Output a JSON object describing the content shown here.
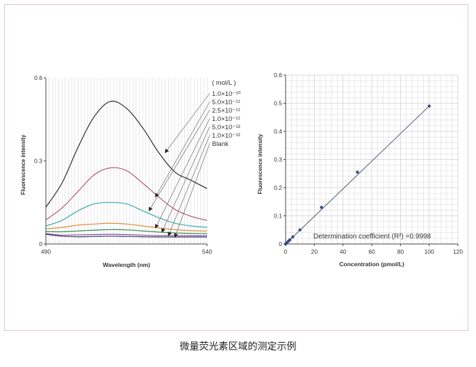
{
  "caption": "微量荧光素区域的测定示例",
  "colors": {
    "frame_border": "#e9c2cb",
    "grid": "#cfcfcf",
    "axis": "#444444",
    "fit_line": "#555577",
    "points": "#3a4a8a",
    "curves": [
      "#2b2b2b",
      "#b05a7a",
      "#3aa8a8",
      "#e08a40",
      "#2e8a4e",
      "#8a4aa0",
      "#3a3a6a"
    ]
  },
  "chart_data": [
    {
      "type": "line",
      "title": "",
      "xlabel": "Wavelength (nm)",
      "ylabel": "Fluorescence intensity",
      "xlim": [
        490,
        540
      ],
      "ylim": [
        0,
        0.6
      ],
      "x_ticks": [
        "490",
        "540"
      ],
      "y_ticks": [
        "0",
        "0.3",
        "0.6"
      ],
      "grid": "vertical",
      "legend_title": "( mol/L )",
      "legend_position": "right",
      "x": [
        490,
        495,
        500,
        505,
        510,
        515,
        520,
        525,
        530,
        535,
        540
      ],
      "series": [
        {
          "name": "1.0×10⁻¹⁰",
          "values": [
            0.133,
            0.22,
            0.35,
            0.46,
            0.515,
            0.49,
            0.42,
            0.33,
            0.26,
            0.23,
            0.2
          ]
        },
        {
          "name": "5.0×10⁻¹¹",
          "values": [
            0.087,
            0.13,
            0.19,
            0.25,
            0.275,
            0.265,
            0.22,
            0.17,
            0.125,
            0.1,
            0.085
          ]
        },
        {
          "name": "2.5×10⁻¹¹",
          "values": [
            0.065,
            0.085,
            0.12,
            0.145,
            0.15,
            0.145,
            0.12,
            0.095,
            0.075,
            0.065,
            0.06
          ]
        },
        {
          "name": "1.0×10⁻¹¹",
          "values": [
            0.055,
            0.06,
            0.068,
            0.072,
            0.075,
            0.072,
            0.065,
            0.058,
            0.052,
            0.048,
            0.047
          ]
        },
        {
          "name": "5.0×10⁻¹²",
          "values": [
            0.045,
            0.044,
            0.047,
            0.05,
            0.052,
            0.051,
            0.047,
            0.043,
            0.04,
            0.038,
            0.038
          ]
        },
        {
          "name": "1.0×10⁻¹²",
          "values": [
            0.038,
            0.032,
            0.033,
            0.034,
            0.035,
            0.034,
            0.032,
            0.03,
            0.03,
            0.03,
            0.03
          ]
        },
        {
          "name": "Blank",
          "values": [
            0.035,
            0.028,
            0.026,
            0.027,
            0.028,
            0.027,
            0.026,
            0.025,
            0.025,
            0.025,
            0.025
          ]
        }
      ]
    },
    {
      "type": "scatter",
      "title": "",
      "xlabel": "Concentration (pmol/L)",
      "ylabel": "Fluorescence intensity",
      "xlim": [
        0,
        120
      ],
      "ylim": [
        0,
        0.6
      ],
      "x_ticks": [
        "0",
        "20",
        "40",
        "60",
        "80",
        "100",
        "120"
      ],
      "y_ticks": [
        "0",
        "0.1",
        "0.2",
        "0.3",
        "0.4",
        "0.5",
        "0.6"
      ],
      "grid": "on",
      "annotation": "Determination coefficient (R²) =0.9998",
      "x": [
        0,
        1,
        2,
        3,
        5,
        10,
        25,
        50,
        100
      ],
      "y": [
        0.0,
        0.005,
        0.01,
        0.015,
        0.025,
        0.05,
        0.13,
        0.255,
        0.49
      ],
      "fit_line": {
        "x": [
          0,
          100
        ],
        "y": [
          0,
          0.49
        ]
      }
    }
  ]
}
